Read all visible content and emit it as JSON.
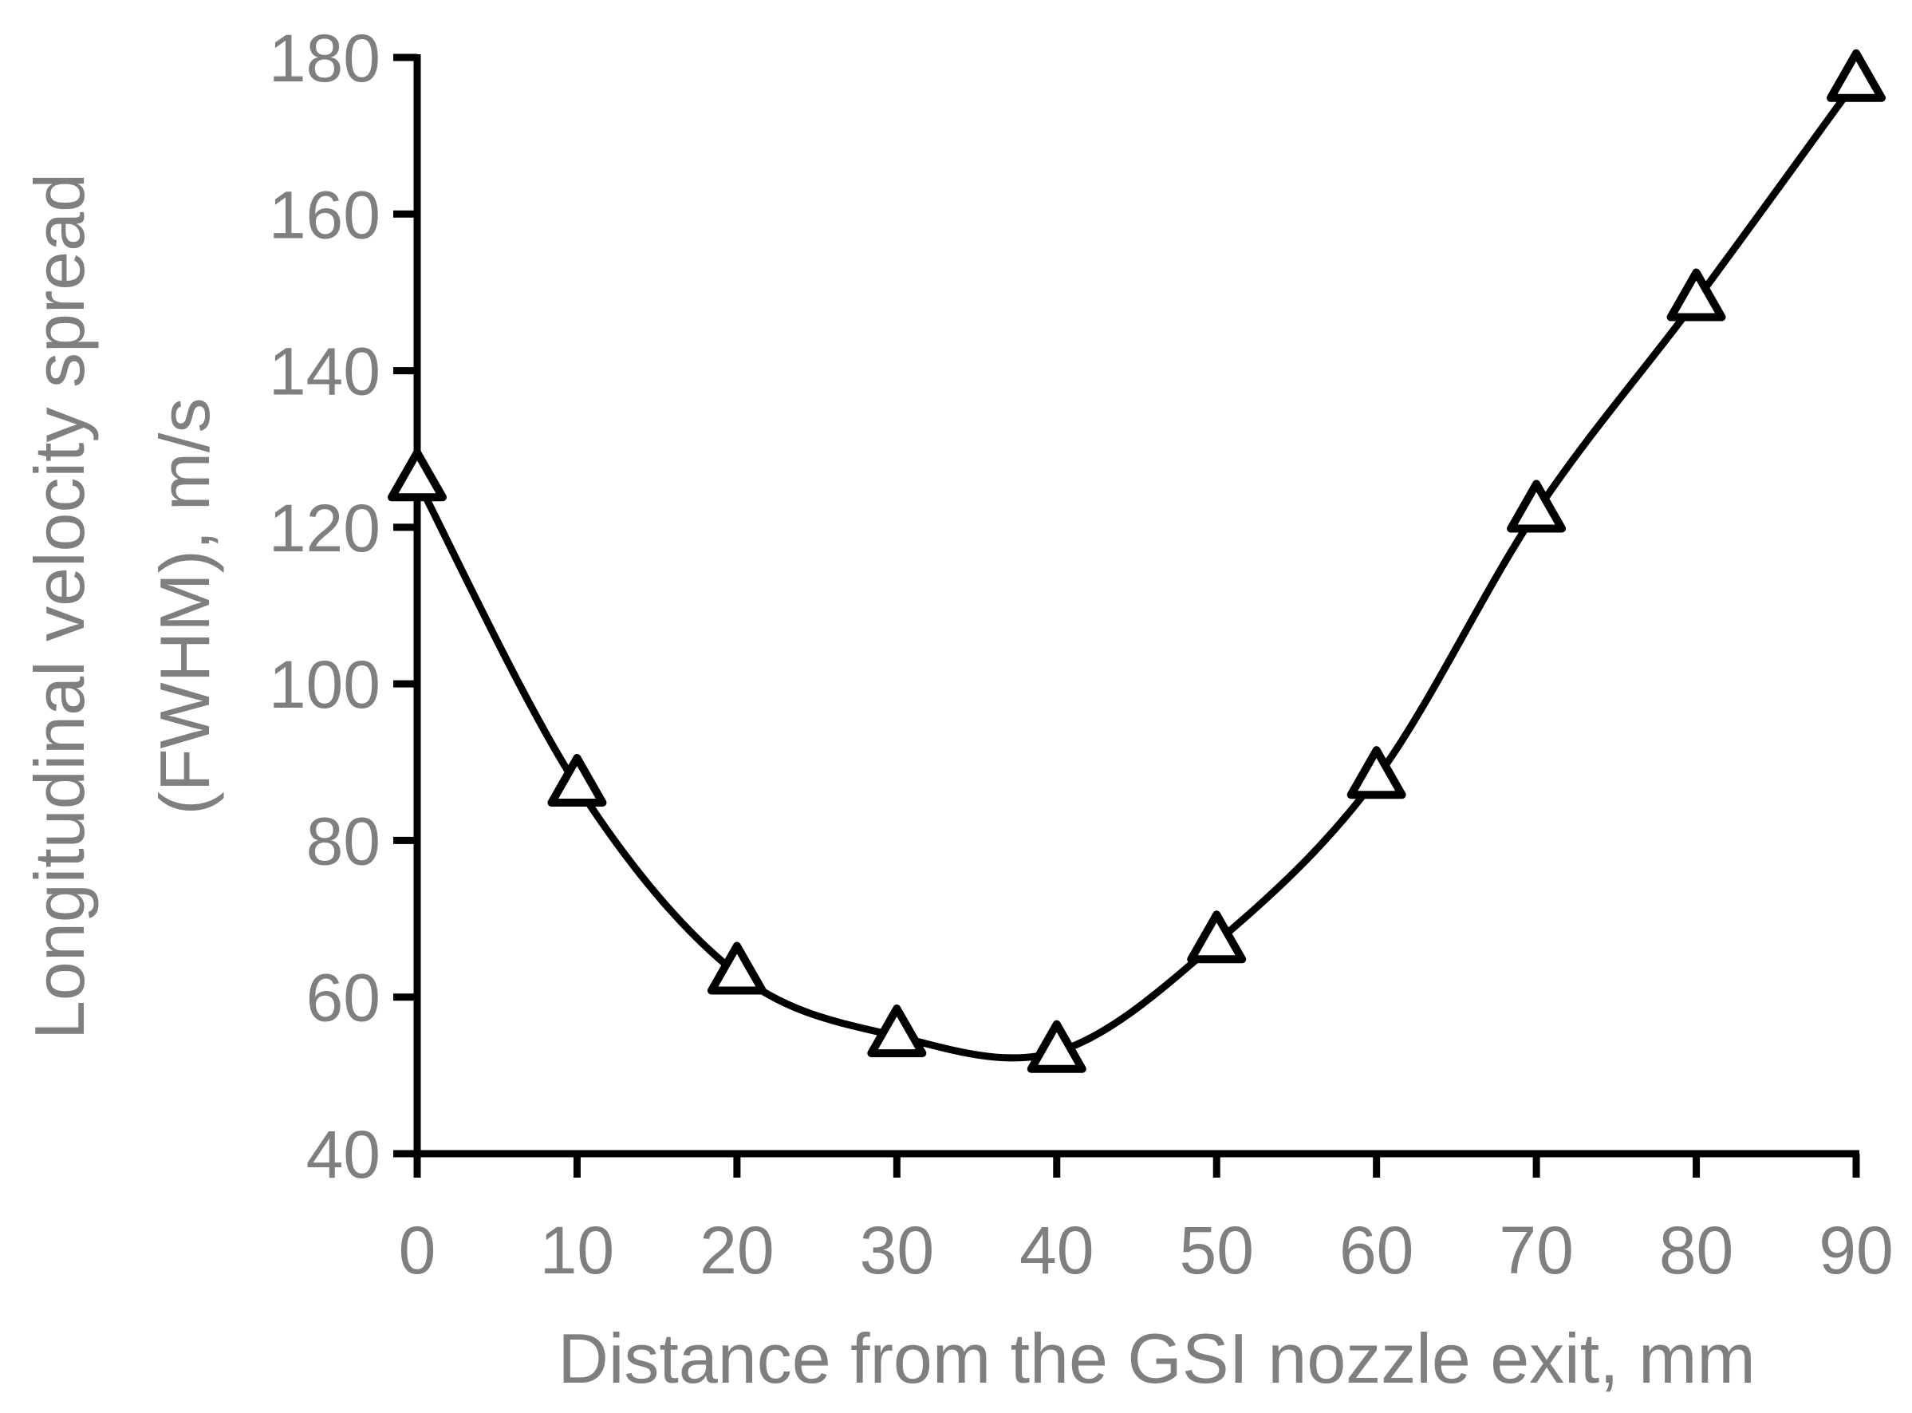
{
  "chart_data": {
    "type": "line",
    "title": "",
    "xlabel": "Distance from the GSI nozzle exit, mm",
    "ylabel_lines": [
      "Longitudinal velocity spread",
      "(FWHM), m/s"
    ],
    "xlim": [
      0,
      90
    ],
    "ylim": [
      40,
      180
    ],
    "x_ticks": [
      0,
      10,
      20,
      30,
      40,
      50,
      60,
      70,
      80,
      90
    ],
    "y_ticks": [
      40,
      60,
      80,
      100,
      120,
      140,
      160,
      180
    ],
    "grid": false,
    "legend": "none",
    "marker": "open-triangle",
    "line_style": "smooth",
    "series": [
      {
        "x": [
          0,
          10,
          20,
          30,
          40,
          50,
          60,
          70,
          80,
          90
        ],
        "values": [
          126,
          87,
          63,
          55,
          53,
          67,
          88,
          122,
          149,
          177
        ]
      }
    ],
    "colors": {
      "line": "#000000",
      "axis": "#000000",
      "text": "#7f7f7f"
    }
  }
}
